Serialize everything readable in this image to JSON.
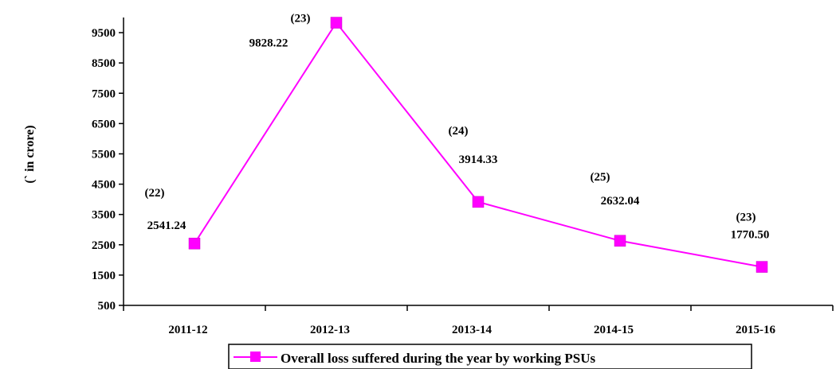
{
  "chart_data": {
    "type": "line",
    "categories": [
      "2011-12",
      "2012-13",
      "2013-14",
      "2014-15",
      "2015-16"
    ],
    "series": [
      {
        "name": "Overall loss suffered during the year by working PSUs",
        "values": [
          2541.24,
          9828.22,
          3914.33,
          2632.04,
          1770.5
        ],
        "value_labels": [
          "2541.24",
          "9828.22",
          "3914.33",
          "2632.04",
          "1770.50"
        ],
        "counts": [
          "(22)",
          "(23)",
          "(24)",
          "(25)",
          "(23)"
        ],
        "color": "#ff00ff",
        "marker": "square"
      }
    ],
    "ylabel": "(` in crore)",
    "xlabel": "",
    "ylim": [
      500,
      10000
    ],
    "yticks": [
      500,
      1500,
      2500,
      3500,
      4500,
      5500,
      6500,
      7500,
      8500,
      9500
    ],
    "legend": "bottom-center",
    "grid": false
  }
}
